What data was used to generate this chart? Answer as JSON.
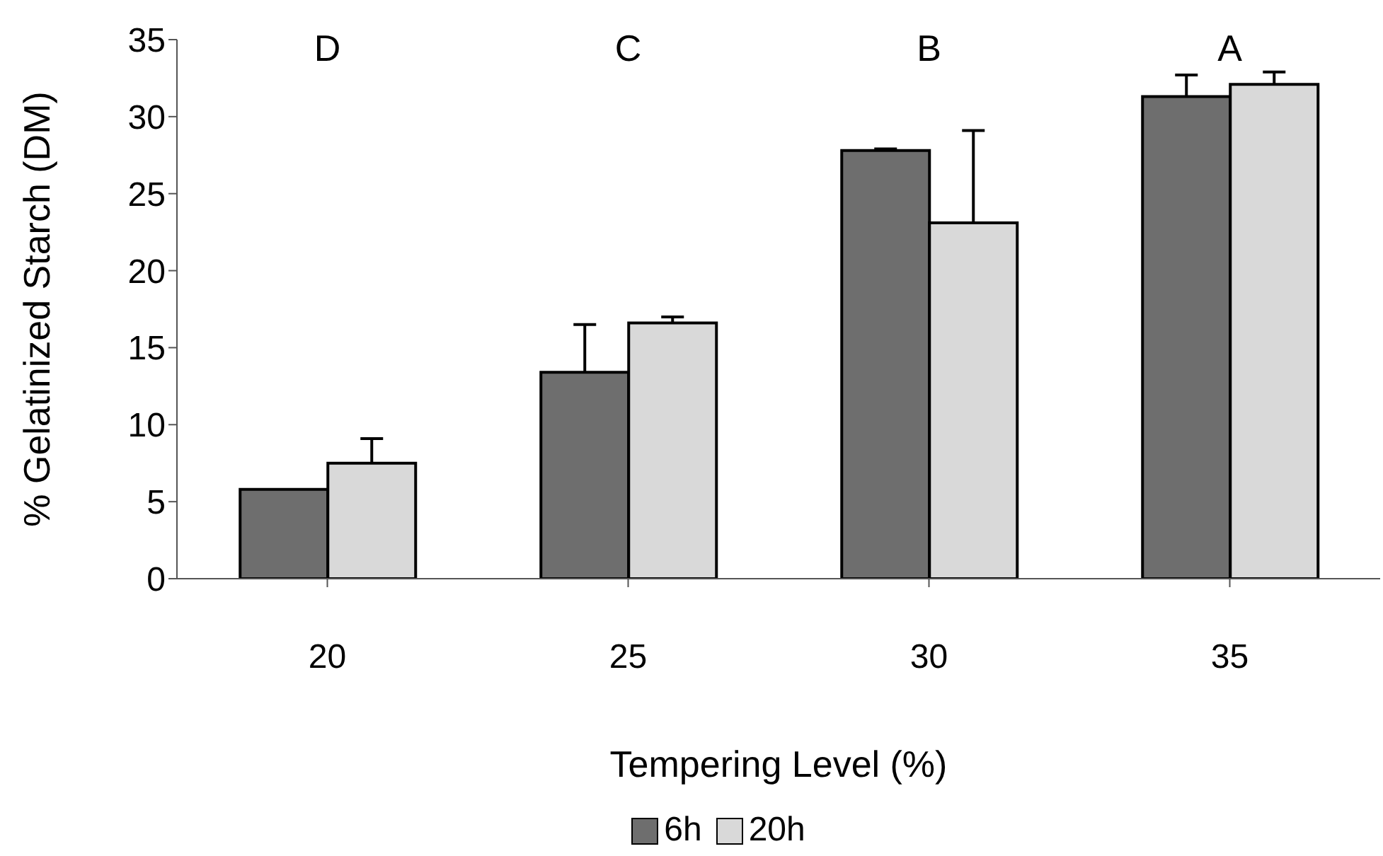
{
  "chart_data": {
    "type": "bar",
    "xlabel": "Tempering Level (%)",
    "ylabel": "% Gelatinized Starch (DM)",
    "categories": [
      "20",
      "25",
      "30",
      "35"
    ],
    "series": [
      {
        "name": "6h",
        "color": "#6e6e6e",
        "values": [
          5.8,
          13.4,
          27.8,
          31.3
        ],
        "errors": [
          null,
          [
            13.4,
            16.5
          ],
          [
            27.8,
            27.9
          ],
          [
            31.3,
            32.7
          ]
        ]
      },
      {
        "name": "20h",
        "color": "#d9d9d9",
        "values": [
          7.5,
          16.6,
          23.1,
          32.1
        ],
        "errors": [
          [
            7.5,
            9.1
          ],
          [
            16.6,
            17.0
          ],
          [
            23.1,
            29.1
          ],
          [
            32.1,
            32.9
          ]
        ]
      }
    ],
    "ylim": [
      0,
      35
    ],
    "yticks": [
      0,
      5,
      10,
      15,
      20,
      25,
      30,
      35
    ],
    "grid": false,
    "legend": "bottom",
    "annotations": [
      "D",
      "C",
      "B",
      "A"
    ]
  }
}
